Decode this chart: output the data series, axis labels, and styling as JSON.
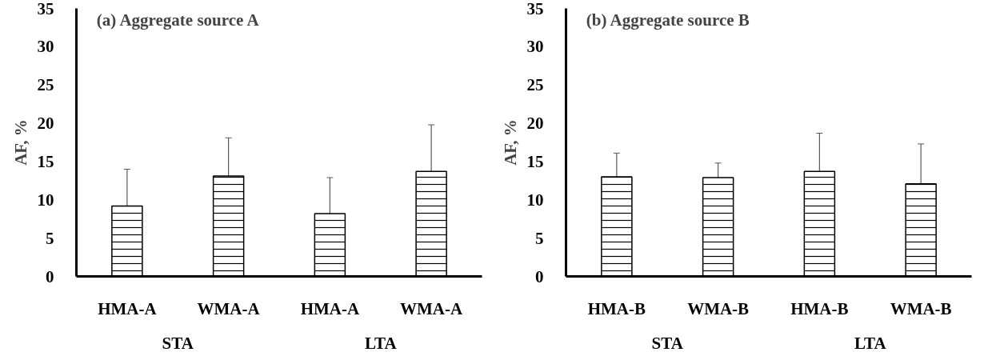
{
  "chart_data": [
    {
      "type": "bar",
      "title": "(a)  Aggregate source A",
      "ylabel": "AF, %",
      "categories": [
        "HMA-A",
        "WMA-A",
        "HMA-A",
        "WMA-A"
      ],
      "values": [
        9.2,
        13.1,
        8.2,
        13.7
      ],
      "errors": [
        4.8,
        5.0,
        4.7,
        6.1
      ],
      "color": "#000000",
      "ylim": [
        0,
        35
      ],
      "yticks": [
        0,
        5,
        10,
        15,
        20,
        25,
        30,
        35
      ],
      "grid": false,
      "annotations": [
        "STA",
        "LTA"
      ]
    },
    {
      "type": "bar",
      "title": "(b) Aggregate source B",
      "ylabel": "AF, %",
      "categories": [
        "HMA-B",
        "WMA-B",
        "HMA-B",
        "WMA-B"
      ],
      "values": [
        13.0,
        12.9,
        13.7,
        12.1
      ],
      "errors": [
        3.1,
        1.9,
        5.0,
        5.2
      ],
      "color": "#000000",
      "ylim": [
        0,
        35
      ],
      "yticks": [
        0,
        5,
        10,
        15,
        20,
        25,
        30,
        35
      ],
      "grid": false,
      "annotations": [
        "STA",
        "LTA"
      ]
    }
  ]
}
